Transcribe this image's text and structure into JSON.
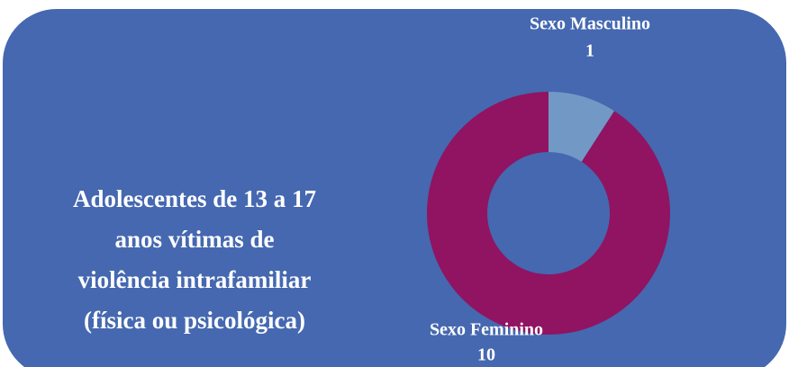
{
  "chart_data": {
    "type": "donut",
    "title": [
      "Adolescentes de 13 a 17",
      "anos vítimas de",
      "violência intrafamiliar",
      "(física ou psicológica)"
    ],
    "categories": [
      "Sexo Masculino",
      "Sexo Feminino"
    ],
    "values": [
      1,
      10
    ],
    "colors": [
      "#7299c6",
      "#901461"
    ],
    "background": "#4568b0"
  }
}
